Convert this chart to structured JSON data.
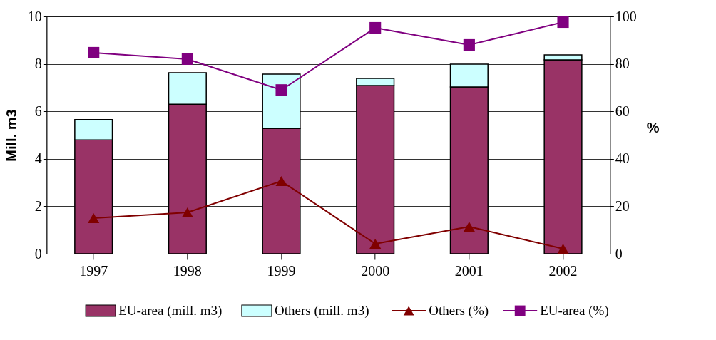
{
  "chart_data": {
    "type": "bar",
    "stacked": true,
    "ylabel": "Mill. m3",
    "y2label": "%",
    "categories": [
      "1997",
      "1998",
      "1999",
      "2000",
      "2001",
      "2002"
    ],
    "series": [
      {
        "name": "EU-area (mill. m3)",
        "color": "#993366",
        "values": [
          4.8,
          6.3,
          5.28,
          7.09,
          7.03,
          8.17
        ]
      },
      {
        "name": "Others (mill. m3)",
        "color": "#ccffff",
        "values": [
          0.85,
          1.33,
          2.29,
          0.3,
          0.96,
          0.21
        ]
      },
      {
        "name": "Others (%)",
        "type": "line",
        "axis": "y2",
        "marker": "triangle",
        "line_style": "solid",
        "color": "#800000",
        "values": [
          15,
          17.4,
          30.6,
          4.2,
          11.4,
          2.1
        ]
      },
      {
        "name": "EU-area (%)",
        "type": "line",
        "axis": "y2",
        "marker": "square",
        "line_style": "solid",
        "color": "#800080",
        "values": [
          84.7,
          82,
          69,
          95.2,
          88,
          97.6
        ]
      }
    ],
    "ylim": [
      0,
      10
    ],
    "yticks": [
      0,
      2,
      4,
      6,
      8,
      10
    ],
    "y2lim": [
      0,
      100
    ],
    "y2ticks": [
      0,
      20,
      40,
      60,
      80,
      100
    ],
    "grid": "y",
    "legend": "bottom"
  }
}
